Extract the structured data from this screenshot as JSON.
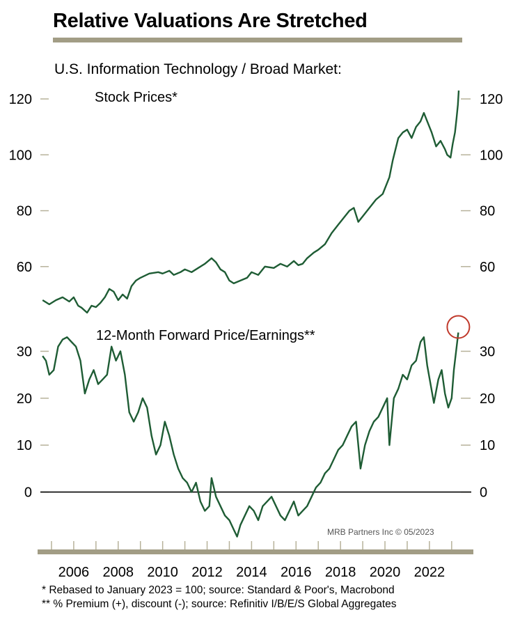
{
  "title": "Relative Valuations Are Stretched",
  "subtitle": "U.S. Information Technology / Broad Market:",
  "credit": "MRB Partners Inc © 05/2023",
  "footnotes": [
    "* Rebased to January 2023 = 100; source: Standard & Poor's, Macrobond",
    "** % Premium (+), discount (-); source: Refinitiv I/B/E/S Global Aggregates"
  ],
  "colors": {
    "line": "#1e5c34",
    "tick": "#b7b29a",
    "highlight": "#c0392b",
    "rule": "#a29d85"
  },
  "chart_data": [
    {
      "type": "line",
      "title": "Stock Prices*",
      "x_ticks": [
        "2006",
        "2008",
        "2010",
        "2012",
        "2014",
        "2016",
        "2018",
        "2020",
        "2022"
      ],
      "y_ticks": [
        60,
        80,
        100,
        120
      ],
      "xlim": [
        2004.5,
        2023.35
      ],
      "ylim": [
        44,
        126
      ],
      "series": [
        {
          "points": [
            [
              2004.6,
              48
            ],
            [
              2004.9,
              46.5
            ],
            [
              2005.2,
              48
            ],
            [
              2005.5,
              49
            ],
            [
              2005.8,
              47.5
            ],
            [
              2006.0,
              49
            ],
            [
              2006.2,
              46
            ],
            [
              2006.35,
              45.3
            ],
            [
              2006.6,
              43.5
            ],
            [
              2006.8,
              46
            ],
            [
              2007.0,
              45.5
            ],
            [
              2007.2,
              47
            ],
            [
              2007.4,
              49
            ],
            [
              2007.6,
              52
            ],
            [
              2007.8,
              51
            ],
            [
              2008.0,
              48
            ],
            [
              2008.2,
              50
            ],
            [
              2008.4,
              48.5
            ],
            [
              2008.6,
              53
            ],
            [
              2008.8,
              55
            ],
            [
              2009.0,
              56
            ],
            [
              2009.4,
              57.5
            ],
            [
              2009.8,
              58
            ],
            [
              2010.0,
              57.5
            ],
            [
              2010.3,
              58.5
            ],
            [
              2010.5,
              57
            ],
            [
              2010.8,
              58
            ],
            [
              2011.0,
              59
            ],
            [
              2011.3,
              58
            ],
            [
              2011.6,
              59.5
            ],
            [
              2011.9,
              61
            ],
            [
              2012.2,
              63
            ],
            [
              2012.4,
              61.5
            ],
            [
              2012.6,
              59
            ],
            [
              2012.8,
              58
            ],
            [
              2013.0,
              55
            ],
            [
              2013.2,
              54
            ],
            [
              2013.5,
              55
            ],
            [
              2013.8,
              56
            ],
            [
              2014.0,
              58
            ],
            [
              2014.3,
              57
            ],
            [
              2014.6,
              60
            ],
            [
              2015.0,
              59.5
            ],
            [
              2015.3,
              61
            ],
            [
              2015.6,
              60
            ],
            [
              2015.9,
              62
            ],
            [
              2016.1,
              60.5
            ],
            [
              2016.3,
              61
            ],
            [
              2016.5,
              63
            ],
            [
              2016.8,
              65
            ],
            [
              2017.0,
              66
            ],
            [
              2017.3,
              68
            ],
            [
              2017.6,
              72
            ],
            [
              2017.9,
              75
            ],
            [
              2018.1,
              77
            ],
            [
              2018.4,
              80
            ],
            [
              2018.6,
              81
            ],
            [
              2018.8,
              76
            ],
            [
              2019.0,
              78
            ],
            [
              2019.3,
              81
            ],
            [
              2019.6,
              84
            ],
            [
              2019.9,
              86
            ],
            [
              2020.1,
              90
            ],
            [
              2020.2,
              92
            ],
            [
              2020.35,
              98
            ],
            [
              2020.6,
              106
            ],
            [
              2020.8,
              108
            ],
            [
              2021.0,
              109
            ],
            [
              2021.2,
              106
            ],
            [
              2021.4,
              110
            ],
            [
              2021.6,
              112
            ],
            [
              2021.75,
              115
            ],
            [
              2021.9,
              112
            ],
            [
              2022.1,
              108
            ],
            [
              2022.3,
              103
            ],
            [
              2022.5,
              105
            ],
            [
              2022.7,
              102
            ],
            [
              2022.8,
              100
            ],
            [
              2022.95,
              99
            ],
            [
              2023.05,
              104
            ],
            [
              2023.15,
              108
            ],
            [
              2023.22,
              113
            ],
            [
              2023.28,
              118
            ],
            [
              2023.32,
              123
            ]
          ]
        }
      ]
    },
    {
      "type": "line",
      "title": "12-Month Forward Price/Earnings**",
      "x_ticks": [
        "2006",
        "2008",
        "2010",
        "2012",
        "2014",
        "2016",
        "2018",
        "2020",
        "2022"
      ],
      "y_ticks": [
        0,
        10,
        20,
        30
      ],
      "xlim": [
        2004.5,
        2023.35
      ],
      "ylim": [
        -10,
        36
      ],
      "series": [
        {
          "points": [
            [
              2004.6,
              29
            ],
            [
              2004.75,
              28
            ],
            [
              2004.9,
              25
            ],
            [
              2005.1,
              26
            ],
            [
              2005.3,
              31
            ],
            [
              2005.5,
              32.5
            ],
            [
              2005.7,
              33
            ],
            [
              2005.9,
              32
            ],
            [
              2006.1,
              31
            ],
            [
              2006.3,
              28
            ],
            [
              2006.5,
              21
            ],
            [
              2006.7,
              24
            ],
            [
              2006.9,
              26
            ],
            [
              2007.1,
              23
            ],
            [
              2007.3,
              24
            ],
            [
              2007.5,
              25
            ],
            [
              2007.7,
              31
            ],
            [
              2007.9,
              28
            ],
            [
              2008.1,
              30
            ],
            [
              2008.3,
              25
            ],
            [
              2008.5,
              17
            ],
            [
              2008.7,
              15
            ],
            [
              2008.9,
              17
            ],
            [
              2009.1,
              20
            ],
            [
              2009.3,
              18
            ],
            [
              2009.5,
              12
            ],
            [
              2009.7,
              8
            ],
            [
              2009.9,
              10
            ],
            [
              2010.1,
              15
            ],
            [
              2010.3,
              12
            ],
            [
              2010.5,
              8
            ],
            [
              2010.7,
              5
            ],
            [
              2010.9,
              3
            ],
            [
              2011.1,
              2
            ],
            [
              2011.3,
              0
            ],
            [
              2011.5,
              2
            ],
            [
              2011.7,
              -2
            ],
            [
              2011.9,
              -4
            ],
            [
              2012.1,
              -3
            ],
            [
              2012.2,
              3
            ],
            [
              2012.4,
              -1
            ],
            [
              2012.6,
              -3
            ],
            [
              2012.8,
              -5
            ],
            [
              2013.0,
              -6
            ],
            [
              2013.2,
              -8
            ],
            [
              2013.35,
              -9.5
            ],
            [
              2013.5,
              -7
            ],
            [
              2013.7,
              -5
            ],
            [
              2013.9,
              -3
            ],
            [
              2014.1,
              -4
            ],
            [
              2014.3,
              -6
            ],
            [
              2014.5,
              -3
            ],
            [
              2014.7,
              -2
            ],
            [
              2014.9,
              -1
            ],
            [
              2015.1,
              -3
            ],
            [
              2015.3,
              -5
            ],
            [
              2015.5,
              -6
            ],
            [
              2015.7,
              -4
            ],
            [
              2015.9,
              -2
            ],
            [
              2016.1,
              -5
            ],
            [
              2016.3,
              -4
            ],
            [
              2016.5,
              -3
            ],
            [
              2016.7,
              -1
            ],
            [
              2016.9,
              1
            ],
            [
              2017.1,
              2
            ],
            [
              2017.3,
              4
            ],
            [
              2017.5,
              5
            ],
            [
              2017.7,
              7
            ],
            [
              2017.9,
              9
            ],
            [
              2018.1,
              10
            ],
            [
              2018.3,
              12
            ],
            [
              2018.5,
              14
            ],
            [
              2018.7,
              15
            ],
            [
              2018.9,
              5
            ],
            [
              2019.1,
              10
            ],
            [
              2019.3,
              13
            ],
            [
              2019.5,
              15
            ],
            [
              2019.7,
              16
            ],
            [
              2019.9,
              18
            ],
            [
              2020.1,
              20
            ],
            [
              2020.2,
              10
            ],
            [
              2020.4,
              20
            ],
            [
              2020.6,
              22
            ],
            [
              2020.8,
              25
            ],
            [
              2021.0,
              24
            ],
            [
              2021.2,
              27
            ],
            [
              2021.4,
              28
            ],
            [
              2021.6,
              32
            ],
            [
              2021.75,
              33
            ],
            [
              2021.9,
              27
            ],
            [
              2022.05,
              23
            ],
            [
              2022.2,
              19
            ],
            [
              2022.4,
              24
            ],
            [
              2022.55,
              26
            ],
            [
              2022.7,
              21
            ],
            [
              2022.85,
              18
            ],
            [
              2023.0,
              20
            ],
            [
              2023.1,
              26
            ],
            [
              2023.2,
              30
            ],
            [
              2023.3,
              34
            ]
          ]
        }
      ]
    }
  ]
}
